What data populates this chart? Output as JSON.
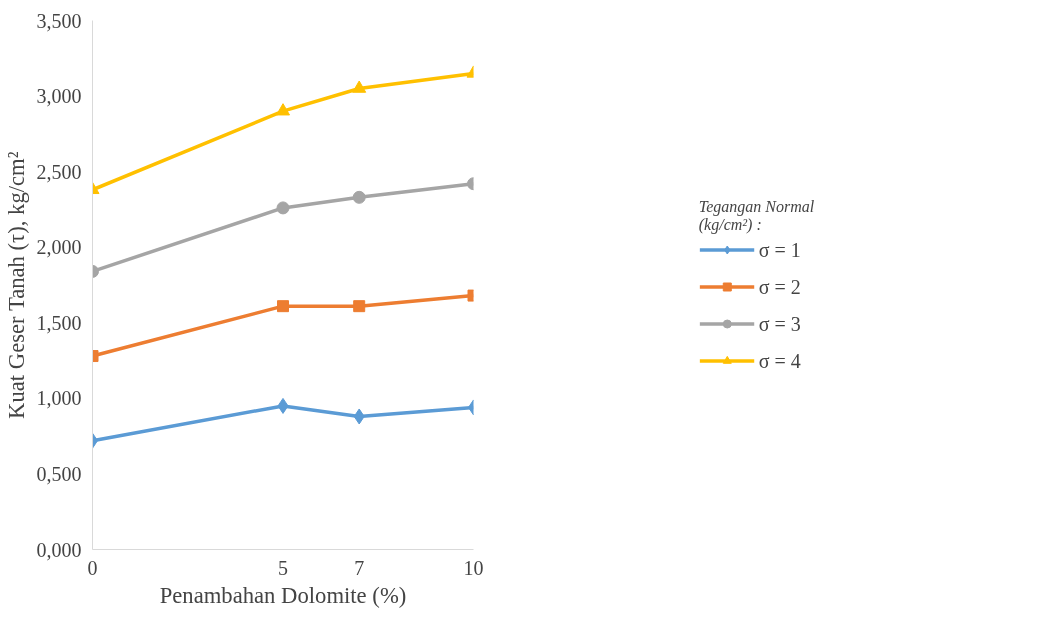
{
  "chart_data": {
    "type": "line",
    "xlabel": "Penambahan Dolomite (%)",
    "ylabel": "Kuat Geser Tanah (τ), kg/cm²",
    "legend_title": "Tegangan Normal\n(kg/cm²) :",
    "x": [
      0,
      5,
      7,
      10
    ],
    "xlim": [
      0,
      10
    ],
    "xticks": [
      0,
      5,
      7,
      10
    ],
    "ylim": [
      0,
      3.5
    ],
    "yticks": [
      {
        "value": 0,
        "label": "0,000"
      },
      {
        "value": 0.5,
        "label": "0,500"
      },
      {
        "value": 1,
        "label": "1,000"
      },
      {
        "value": 1.5,
        "label": "1,500"
      },
      {
        "value": 2,
        "label": "2,000"
      },
      {
        "value": 2.5,
        "label": "2,500"
      },
      {
        "value": 3,
        "label": "3,000"
      },
      {
        "value": 3.5,
        "label": "3,500"
      }
    ],
    "grid": false,
    "legend": "right",
    "line_style": "solid",
    "series": [
      {
        "name": "σ = 1",
        "color": "#5b9bd5",
        "marker": "diamond",
        "values": [
          0.72,
          0.95,
          0.88,
          0.94
        ]
      },
      {
        "name": "σ = 2",
        "color": "#ed7d31",
        "marker": "square",
        "values": [
          1.28,
          1.61,
          1.61,
          1.68
        ]
      },
      {
        "name": "σ = 3",
        "color": "#a5a5a5",
        "marker": "circle",
        "values": [
          1.84,
          2.26,
          2.33,
          2.42
        ]
      },
      {
        "name": "σ = 4",
        "color": "#ffc000",
        "marker": "triangle",
        "values": [
          2.38,
          2.9,
          3.05,
          3.15
        ]
      }
    ]
  }
}
